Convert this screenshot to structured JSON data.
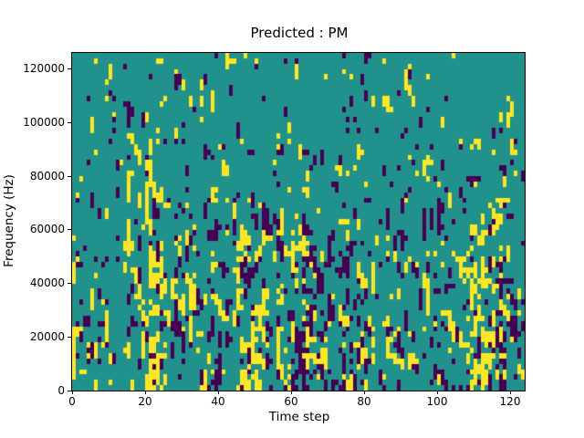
{
  "figure": {
    "background": "#ffffff"
  },
  "chart_data": {
    "type": "heatmap",
    "title": "Predicted : PM",
    "xlabel": "Time step",
    "ylabel": "Frequency (Hz)",
    "xlim": [
      0,
      124
    ],
    "ylim": [
      0,
      126000
    ],
    "x_ticks": [
      0,
      20,
      40,
      60,
      80,
      100,
      120
    ],
    "y_ticks": [
      0,
      20000,
      40000,
      60000,
      80000,
      100000,
      120000
    ],
    "grid": {
      "cols": 124,
      "rows": 63
    },
    "colors": {
      "mid": "#21918c",
      "low": "#440154",
      "high": "#fde725"
    },
    "class_values": {
      "mid": 0.5,
      "high": 1.0,
      "low": 0.0
    },
    "density": {
      "mid": 0.88,
      "high": 0.06,
      "low": 0.06
    },
    "legend": "none",
    "grid_lines": "off",
    "generator": {
      "seed": 1337,
      "base_yellow": 0.028,
      "base_purple": 0.034,
      "depth_min": 0.5,
      "depth_gain": 1.45,
      "run_boost": 0.34,
      "neighbor_boost": 0.09,
      "hotspots": [
        {
          "c0": 12,
          "c1": 17,
          "r0": 48,
          "r1": 62,
          "yellow": 0.03,
          "purple": 0.05
        },
        {
          "c0": 18,
          "c1": 25,
          "r0": 36,
          "r1": 62,
          "yellow": 0.13,
          "purple": 0.02
        },
        {
          "c0": 18,
          "c1": 25,
          "r0": 22,
          "r1": 35,
          "yellow": 0.05,
          "purple": 0.02
        },
        {
          "c0": 28,
          "c1": 33,
          "r0": 28,
          "r1": 52,
          "yellow": 0.06,
          "purple": 0.03
        },
        {
          "c0": 34,
          "c1": 42,
          "r0": 28,
          "r1": 54,
          "yellow": 0.01,
          "purple": 0.06
        },
        {
          "c0": 44,
          "c1": 53,
          "r0": 26,
          "r1": 62,
          "yellow": 0.09,
          "purple": 0.03
        },
        {
          "c0": 48,
          "c1": 52,
          "r0": 44,
          "r1": 56,
          "yellow": 0.14,
          "purple": 0.0
        },
        {
          "c0": 56,
          "c1": 64,
          "r0": 30,
          "r1": 62,
          "yellow": 0.07,
          "purple": 0.04
        },
        {
          "c0": 63,
          "c1": 80,
          "r0": 34,
          "r1": 62,
          "yellow": 0.02,
          "purple": 0.09
        },
        {
          "c0": 96,
          "c1": 103,
          "r0": 20,
          "r1": 44,
          "yellow": 0.02,
          "purple": 0.05
        },
        {
          "c0": 108,
          "c1": 117,
          "r0": 30,
          "r1": 62,
          "yellow": 0.12,
          "purple": 0.02
        },
        {
          "c0": 116,
          "c1": 123,
          "r0": 42,
          "r1": 62,
          "yellow": 0.03,
          "purple": 0.08
        }
      ]
    }
  }
}
